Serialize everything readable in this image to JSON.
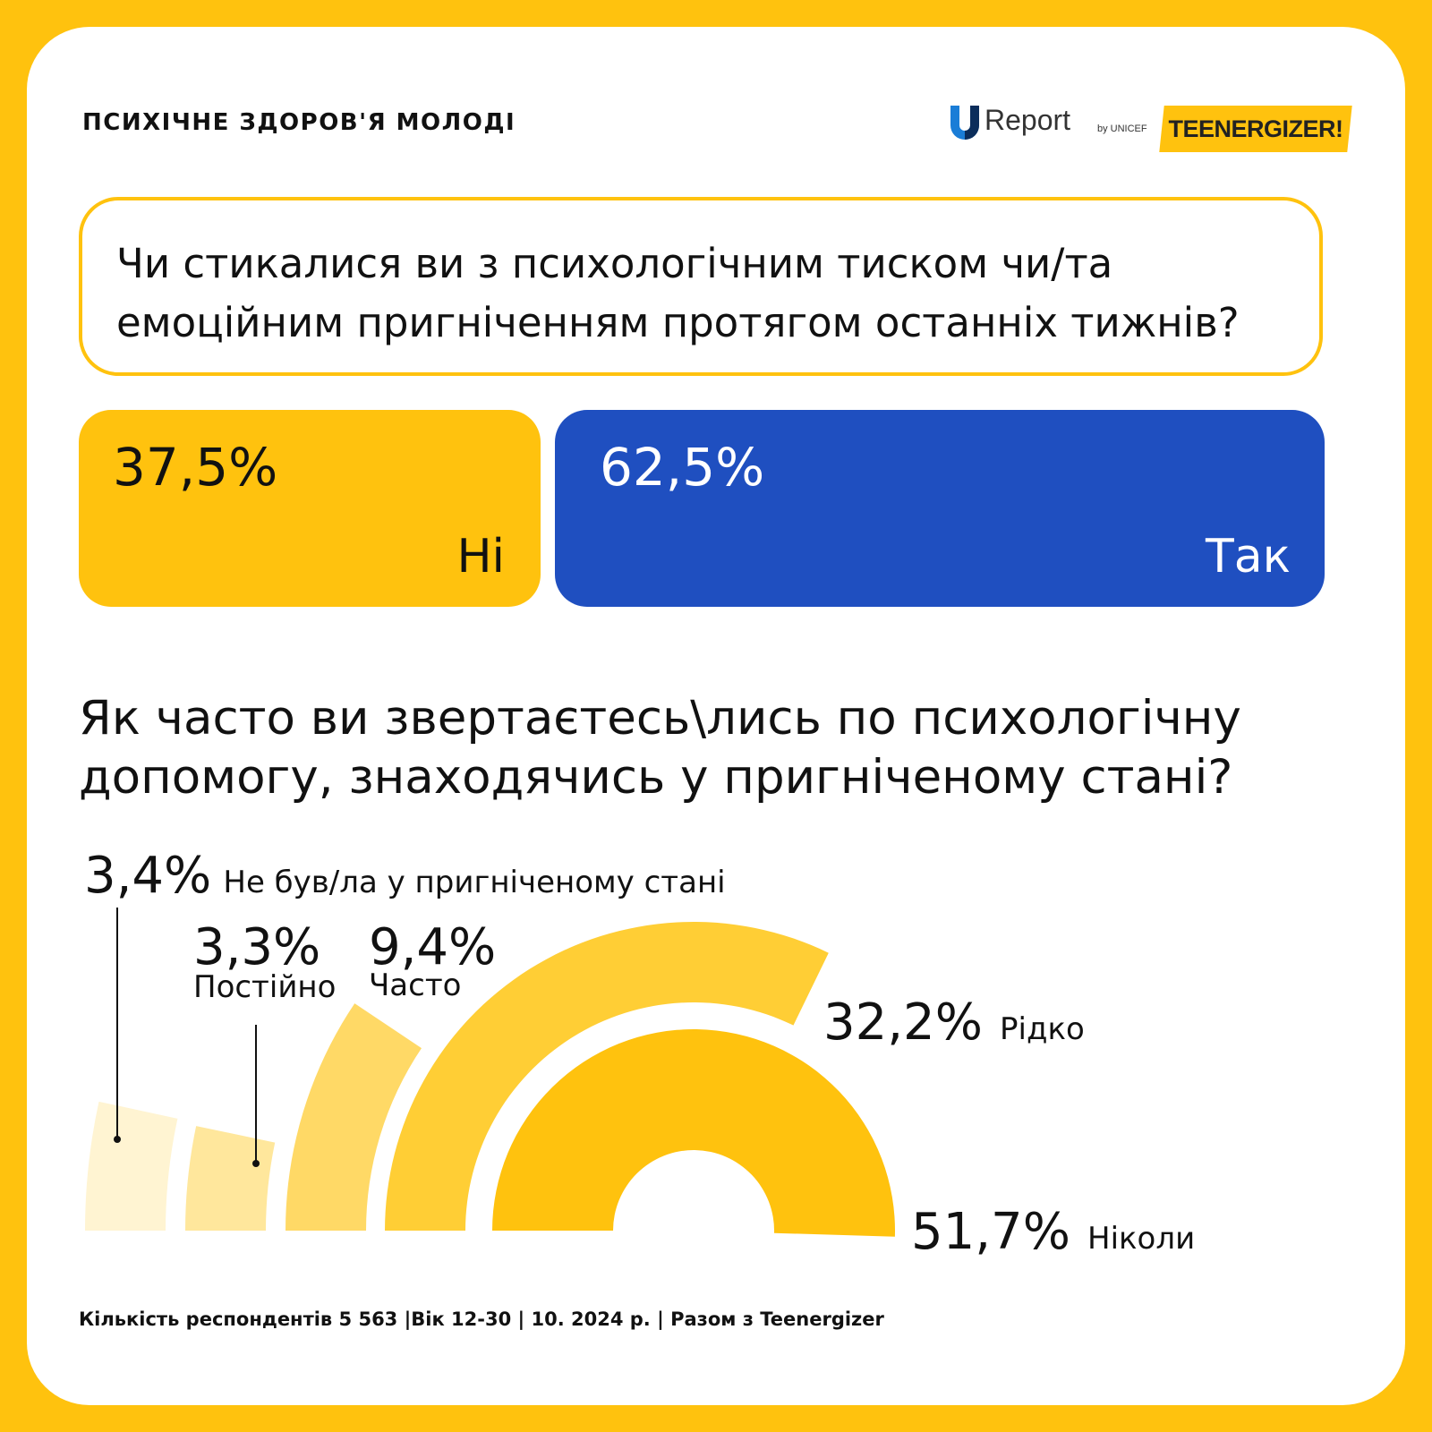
{
  "header": {
    "topic": "ПСИХІЧНЕ ЗДОРОВ'Я МОЛОДІ",
    "ureport_label": "Report",
    "ureport_by": "by UNICEF",
    "teenergizer_label": "TEENERGIZER!"
  },
  "question1": {
    "text": "Чи стикалися ви з психологічним тиском чи/та емоційним пригніченням протягом останніх тижнів?",
    "answers": [
      {
        "label": "Ні",
        "value_text": "37,5%",
        "value": 37.5,
        "color": "#FFC20E"
      },
      {
        "label": "Так",
        "value_text": "62,5%",
        "value": 62.5,
        "color": "#1F4FC0"
      }
    ]
  },
  "question2": {
    "text": "Як часто ви звертаєтесь\\лись по психологічну допомогу, знаходячись у пригніченому стані?"
  },
  "chart_data": {
    "type": "pie",
    "variant": "nested-semicircle-arcs",
    "categories": [
      "Не був/ла у пригніченому стані",
      "Постійно",
      "Часто",
      "Рідко",
      "Ніколи"
    ],
    "values": [
      3.4,
      3.3,
      9.4,
      32.2,
      51.7
    ],
    "value_labels": [
      "3,4%",
      "3,3%",
      "9,4%",
      "32,2%",
      "51,7%"
    ],
    "colors": [
      "#FFF4D2",
      "#FFE79C",
      "#FFD966",
      "#FFCE35",
      "#FFC20E"
    ],
    "title": "",
    "unit": "%"
  },
  "footer": {
    "text": "Кількість респондентів 5 563 |Вік 12-30 | 10. 2024 р. | Разом з Teenergizer"
  }
}
